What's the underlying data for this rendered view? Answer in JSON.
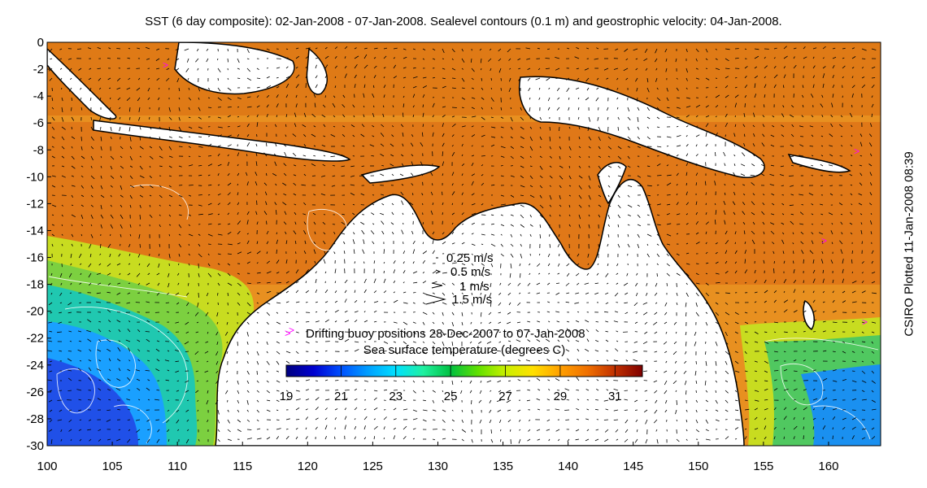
{
  "title": "SST (6 day composite): 02-Jan-2008 - 07-Jan-2008. Sealevel contours (0.1 m) and geostrophic velocity: 04-Jan-2008.",
  "credit": "CSIRO Plotted 11-Jan-2008 08:39",
  "map": {
    "lon_range": [
      100,
      164
    ],
    "lat_range": [
      -30,
      0
    ],
    "x_ticks": [
      100,
      105,
      110,
      115,
      120,
      125,
      130,
      135,
      140,
      145,
      150,
      155,
      160
    ],
    "y_ticks": [
      0,
      -2,
      -4,
      -6,
      -8,
      -10,
      -12,
      -14,
      -16,
      -18,
      -20,
      -22,
      -24,
      -26,
      -28,
      -30
    ],
    "land_color": "#ffffff",
    "coastline_color": "#000000",
    "contour_color": "#ffffff",
    "vector_color": "#000000"
  },
  "velocity_legend": {
    "entries": [
      {
        "label": "0.25 m/s",
        "speed": 0.25
      },
      {
        "label": "0.5 m/s",
        "speed": 0.5
      },
      {
        "label": "1 m/s",
        "speed": 1
      },
      {
        "label": "1.5 m/s",
        "speed": 1.5
      }
    ]
  },
  "buoy_legend": {
    "symbol": ">",
    "label": "Drifting buoy positions 28-Dec-2007 to 07-Jan-2008",
    "color": "#ff00ff"
  },
  "colorbar": {
    "title": "Sea surface temperature (degrees C)",
    "min": 19,
    "max": 32,
    "ticks": [
      19,
      21,
      23,
      25,
      27,
      29,
      31
    ],
    "colors": [
      "#00007f",
      "#0000d0",
      "#0050ff",
      "#00a0ff",
      "#00e0ff",
      "#20f0a0",
      "#00c040",
      "#60e000",
      "#c8f000",
      "#ffe000",
      "#ffa000",
      "#f07000",
      "#c03000",
      "#800000"
    ]
  }
}
